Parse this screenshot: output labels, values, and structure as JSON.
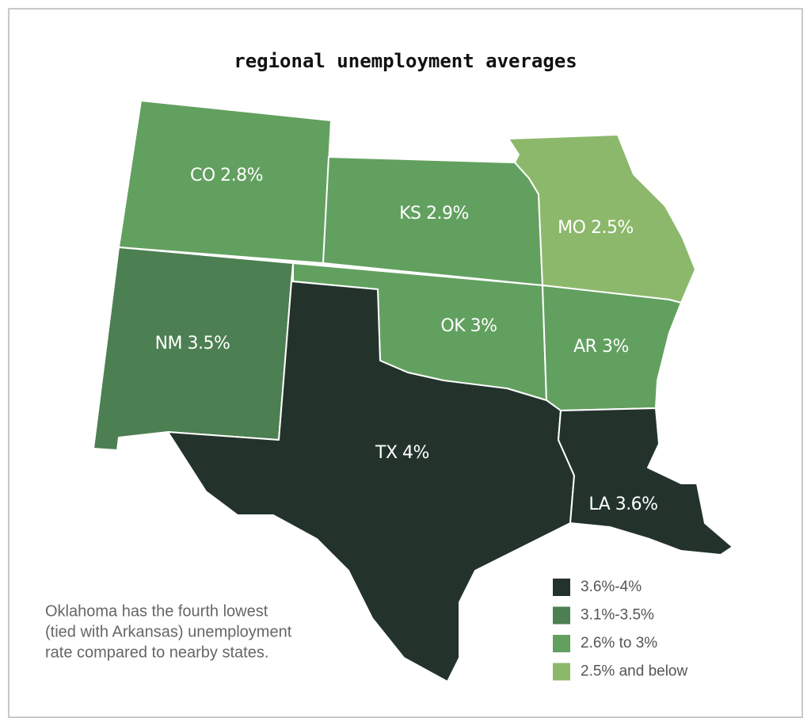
{
  "title": "regional unemployment averages",
  "states": [
    {
      "label": "CO 2.8%",
      "color": "#62a05f"
    },
    {
      "label": "KS 2.9%",
      "color": "#62a05f"
    },
    {
      "label": "MO 2.5%",
      "color": "#8cb86b"
    },
    {
      "label": "NM 3.5%",
      "color": "#4c7f51"
    },
    {
      "label": "OK 3%",
      "color": "#62a05f"
    },
    {
      "label": "AR 3%",
      "color": "#62a05f"
    },
    {
      "label": "TX 4%",
      "color": "#23332c"
    },
    {
      "label": "LA 3.6%",
      "color": "#23332c"
    }
  ],
  "legend": [
    {
      "label": "3.6%-4%",
      "color": "#23332c"
    },
    {
      "label": "3.1%-3.5%",
      "color": "#4c7f51"
    },
    {
      "label": "2.6% to 3%",
      "color": "#62a05f"
    },
    {
      "label": "2.5% and below",
      "color": "#8cb86b"
    }
  ],
  "note": [
    "Oklahoma has the fourth lowest",
    "(tied with Arkansas) unemployment",
    "rate compared to nearby states."
  ]
}
